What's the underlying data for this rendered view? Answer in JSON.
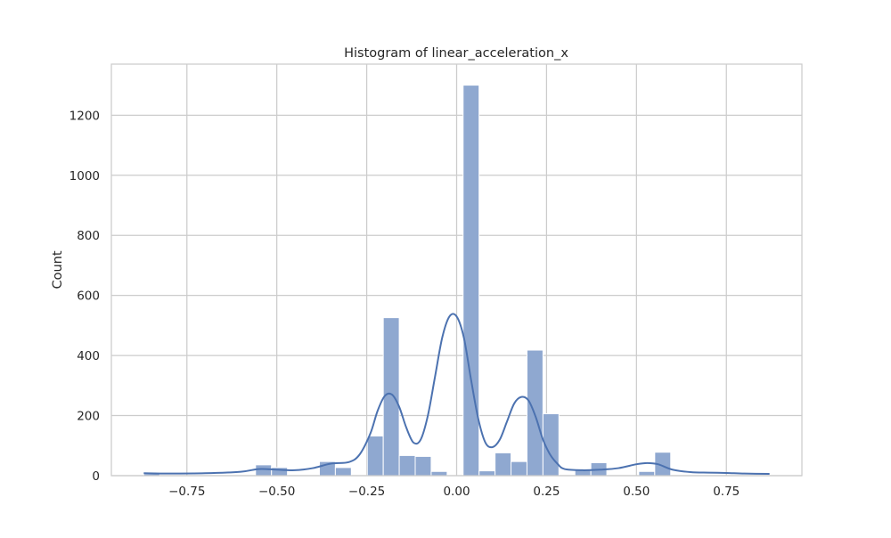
{
  "chart_data": {
    "type": "bar",
    "title": "Histogram of linear_acceleration_x",
    "xlabel": "",
    "ylabel": "Count",
    "xlim": [
      -0.96,
      0.96
    ],
    "ylim": [
      0,
      1370
    ],
    "grid": true,
    "x_ticks": [
      -0.75,
      -0.5,
      -0.25,
      0.0,
      0.25,
      0.5,
      0.75
    ],
    "x_tick_labels": [
      "−0.75",
      "−0.50",
      "−0.25",
      "0.00",
      "0.25",
      "0.50",
      "0.75"
    ],
    "y_ticks": [
      0,
      200,
      400,
      600,
      800,
      1000,
      1200
    ],
    "y_tick_labels": [
      "0",
      "200",
      "400",
      "600",
      "800",
      "1000",
      "1200"
    ],
    "bar_color": "#8fa8d0",
    "bar_edge_color": "#ffffff",
    "kde_color": "#4c72b0",
    "bins": {
      "start": -0.87,
      "width": 0.0444,
      "counts": [
        6,
        0,
        0,
        0,
        0,
        0,
        0,
        36,
        27,
        0,
        0,
        47,
        27,
        0,
        132,
        526,
        67,
        64,
        14,
        0,
        1300,
        16,
        76,
        47,
        418,
        206,
        0,
        22,
        43,
        0,
        0,
        14,
        78,
        0,
        0,
        0,
        0,
        0,
        0,
        0
      ]
    },
    "kde": {
      "x": [
        -0.87,
        -0.8,
        -0.7,
        -0.6,
        -0.55,
        -0.5,
        -0.45,
        -0.4,
        -0.35,
        -0.3,
        -0.27,
        -0.24,
        -0.22,
        -0.2,
        -0.18,
        -0.16,
        -0.14,
        -0.12,
        -0.1,
        -0.08,
        -0.06,
        -0.04,
        -0.02,
        0.0,
        0.02,
        0.04,
        0.06,
        0.08,
        0.1,
        0.12,
        0.14,
        0.16,
        0.18,
        0.2,
        0.22,
        0.24,
        0.26,
        0.28,
        0.3,
        0.35,
        0.4,
        0.45,
        0.5,
        0.53,
        0.56,
        0.6,
        0.65,
        0.7,
        0.75,
        0.8,
        0.87
      ],
      "y": [
        8,
        7,
        8,
        13,
        22,
        20,
        18,
        25,
        40,
        45,
        70,
        140,
        215,
        265,
        270,
        230,
        160,
        110,
        120,
        200,
        330,
        460,
        530,
        530,
        460,
        320,
        190,
        110,
        95,
        120,
        180,
        240,
        262,
        250,
        195,
        120,
        70,
        40,
        22,
        18,
        20,
        25,
        38,
        42,
        38,
        20,
        12,
        10,
        9,
        7,
        6
      ]
    }
  }
}
